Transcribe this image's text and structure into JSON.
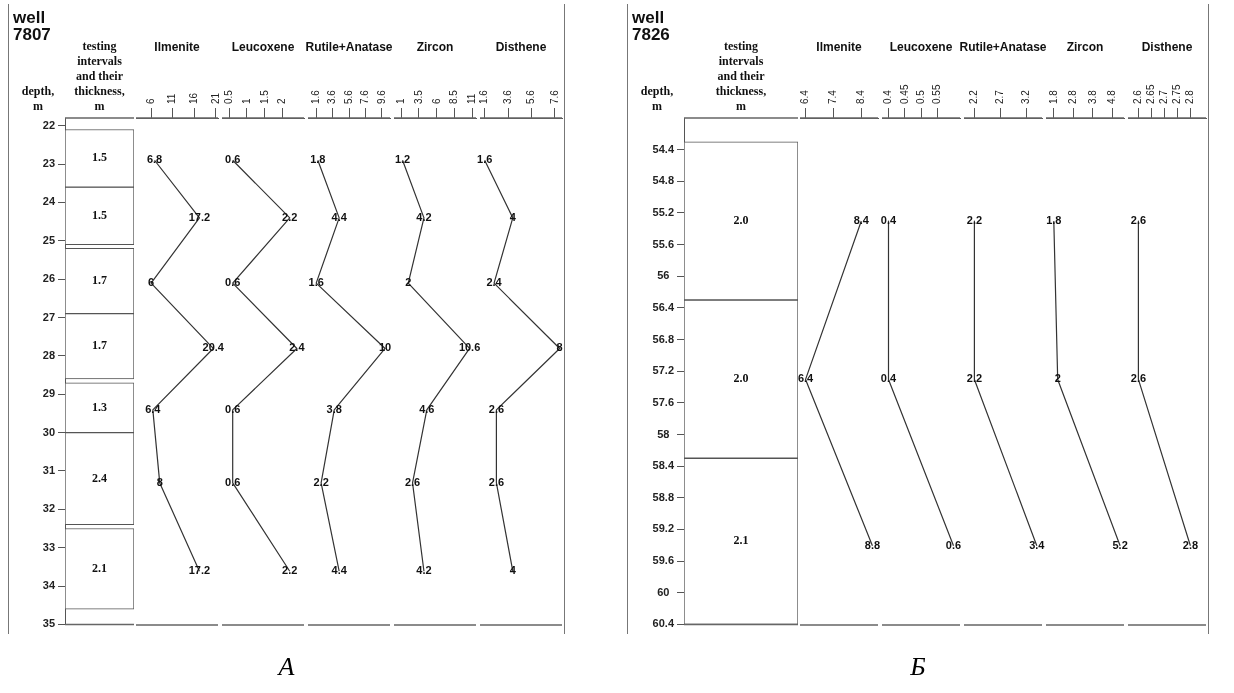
{
  "chart_data": [
    {
      "type": "bar",
      "title": "well 7807",
      "ylabel": "depth, m",
      "xlabel": "testing intervals and their thickness, m",
      "categories": [
        null
      ],
      "ylim": [
        35,
        21.8
      ],
      "yticks": [
        22,
        23,
        24,
        25,
        26,
        27,
        28,
        29,
        30,
        31,
        32,
        33,
        34,
        35
      ],
      "tick_labels": "y",
      "annotations": [
        "A"
      ],
      "series": [
        {
          "color": "#ffffff",
          "base": [
            22.1
          ],
          "values": [
            1.5
          ],
          "value_labels": [
            "1.5"
          ]
        },
        {
          "color": "#ffffff",
          "base": [
            23.6
          ],
          "values": [
            1.5
          ],
          "value_labels": [
            "1.5"
          ]
        },
        {
          "color": "#ffffff",
          "base": [
            25.2
          ],
          "values": [
            1.7
          ],
          "value_labels": [
            "1.7"
          ]
        },
        {
          "color": "#ffffff",
          "base": [
            26.9
          ],
          "values": [
            1.7
          ],
          "value_labels": [
            "1.7"
          ]
        },
        {
          "color": "#ffffff",
          "base": [
            28.7
          ],
          "values": [
            1.3
          ],
          "value_labels": [
            "1.3"
          ]
        },
        {
          "color": "#ffffff",
          "base": [
            30.0
          ],
          "values": [
            2.4
          ],
          "value_labels": [
            "2.4"
          ]
        },
        {
          "color": "#ffffff",
          "base": [
            32.5
          ],
          "values": [
            2.1
          ],
          "value_labels": [
            "2.1"
          ]
        }
      ]
    },
    {
      "type": "line",
      "orientation": "horizontal",
      "title": "Ilmenite",
      "x": [
        22.9,
        24.4,
        26.1,
        27.8,
        29.4,
        31.3,
        33.6
      ],
      "values": [
        6.8,
        17.2,
        6,
        20.4,
        6.4,
        8,
        17.2
      ],
      "data_labels": true,
      "color": "#333333",
      "marker": "none",
      "xlim": [
        2.5,
        21.5
      ],
      "xticks": [
        6,
        11,
        16,
        21
      ],
      "ylim": [
        35,
        21.8
      ],
      "tick_labels": "x"
    },
    {
      "type": "line",
      "orientation": "horizontal",
      "title": "Leucoxene",
      "x": [
        22.9,
        24.4,
        26.1,
        27.8,
        29.4,
        31.3,
        33.6
      ],
      "values": [
        0.6,
        2.2,
        0.6,
        2.4,
        0.6,
        0.6,
        2.2
      ],
      "data_labels": true,
      "color": "#333333",
      "marker": "none",
      "xlim": [
        0.3,
        2.6
      ],
      "xticks": [
        0.5,
        1,
        1.5,
        2
      ],
      "ylim": [
        35,
        21.8
      ],
      "tick_labels": "x"
    },
    {
      "type": "line",
      "orientation": "horizontal",
      "title": "Rutile+Anatase",
      "x": [
        22.9,
        24.4,
        26.1,
        27.8,
        29.4,
        31.3,
        33.6
      ],
      "values": [
        1.8,
        4.4,
        1.6,
        10,
        3.8,
        2.2,
        4.4
      ],
      "data_labels": true,
      "color": "#333333",
      "marker": "none",
      "xlim": [
        0.6,
        10.6
      ],
      "xticks": [
        1.6,
        3.6,
        5.6,
        7.6,
        9.6
      ],
      "ylim": [
        35,
        21.8
      ],
      "tick_labels": "x"
    },
    {
      "type": "line",
      "orientation": "horizontal",
      "title": "Zircon",
      "x": [
        22.9,
        24.4,
        26.1,
        27.8,
        29.4,
        31.3,
        33.6
      ],
      "values": [
        1.2,
        4.2,
        2,
        10.6,
        4.6,
        2.6,
        4.2
      ],
      "data_labels": true,
      "color": "#333333",
      "marker": "none",
      "xlim": [
        0,
        11.5
      ],
      "xticks": [
        1,
        3.5,
        6,
        8.5,
        11
      ],
      "ylim": [
        35,
        21.8
      ],
      "tick_labels": "x"
    },
    {
      "type": "line",
      "orientation": "horizontal",
      "title": "Disthene",
      "x": [
        22.9,
        24.4,
        26.1,
        27.8,
        29.4,
        31.3,
        33.6
      ],
      "values": [
        1.6,
        4,
        2.4,
        8,
        2.6,
        2.6,
        4
      ],
      "data_labels": true,
      "color": "#333333",
      "marker": "none",
      "xlim": [
        1.2,
        8.2
      ],
      "xticks": [
        1.6,
        3.6,
        5.6,
        7.6
      ],
      "ylim": [
        35,
        21.8
      ],
      "tick_labels": "x"
    },
    {
      "type": "bar",
      "title": "well 7826",
      "ylabel": "depth, m",
      "xlabel": "testing intervals and their thickness, m",
      "categories": [
        null
      ],
      "ylim": [
        60.4,
        54.0
      ],
      "yticks": [
        54.4,
        54.8,
        55.2,
        55.6,
        56,
        56.4,
        56.8,
        57.2,
        57.6,
        58,
        58.4,
        58.8,
        59.2,
        59.6,
        60,
        60.4
      ],
      "tick_labels": "y",
      "annotations": [
        "Б"
      ],
      "series": [
        {
          "color": "#ffffff",
          "base": [
            54.3
          ],
          "values": [
            2.0
          ],
          "value_labels": [
            "2.0"
          ]
        },
        {
          "color": "#ffffff",
          "base": [
            56.3
          ],
          "values": [
            2.0
          ],
          "value_labels": [
            "2.0"
          ]
        },
        {
          "color": "#ffffff",
          "base": [
            58.3
          ],
          "values": [
            2.1
          ],
          "value_labels": [
            "2.1"
          ]
        }
      ]
    },
    {
      "type": "line",
      "orientation": "horizontal",
      "title": "Ilmenite",
      "x": [
        55.3,
        57.3,
        59.4
      ],
      "values": [
        8.4,
        6.4,
        8.8
      ],
      "data_labels": true,
      "color": "#333333",
      "marker": "none",
      "xlim": [
        6.2,
        9.0
      ],
      "xticks": [
        6.4,
        7.4,
        8.4
      ],
      "ylim": [
        60.4,
        54.0
      ],
      "tick_labels": "x"
    },
    {
      "type": "line",
      "orientation": "horizontal",
      "title": "Leucoxene",
      "x": [
        55.3,
        57.3,
        59.4
      ],
      "values": [
        0.4,
        0.4,
        0.6
      ],
      "data_labels": true,
      "color": "#333333",
      "marker": "none",
      "xlim": [
        0.38,
        0.62
      ],
      "xticks": [
        0.4,
        0.45,
        0.5,
        0.55
      ],
      "ylim": [
        60.4,
        54.0
      ],
      "tick_labels": "x"
    },
    {
      "type": "line",
      "orientation": "horizontal",
      "title": "Rutile+Anatase",
      "x": [
        55.3,
        57.3,
        59.4
      ],
      "values": [
        2.2,
        2.2,
        3.4
      ],
      "data_labels": true,
      "color": "#333333",
      "marker": "none",
      "xlim": [
        2.0,
        3.5
      ],
      "xticks": [
        2.2,
        2.7,
        3.2
      ],
      "ylim": [
        60.4,
        54.0
      ],
      "tick_labels": "x"
    },
    {
      "type": "line",
      "orientation": "horizontal",
      "title": "Zircon",
      "x": [
        55.3,
        57.3,
        59.4
      ],
      "values": [
        1.8,
        2,
        5.2
      ],
      "data_labels": true,
      "color": "#333333",
      "marker": "none",
      "xlim": [
        1.4,
        5.4
      ],
      "xticks": [
        1.8,
        2.8,
        3.8,
        4.8
      ],
      "ylim": [
        60.4,
        54.0
      ],
      "tick_labels": "x"
    },
    {
      "type": "line",
      "orientation": "horizontal",
      "title": "Disthene",
      "x": [
        55.3,
        57.3,
        59.4
      ],
      "values": [
        2.6,
        2.6,
        2.8
      ],
      "data_labels": true,
      "color": "#333333",
      "marker": "none",
      "xlim": [
        2.56,
        2.86
      ],
      "xticks": [
        2.6,
        2.65,
        2.7,
        2.75,
        2.8
      ],
      "ylim": [
        60.4,
        54.0
      ],
      "tick_labels": "x"
    }
  ]
}
